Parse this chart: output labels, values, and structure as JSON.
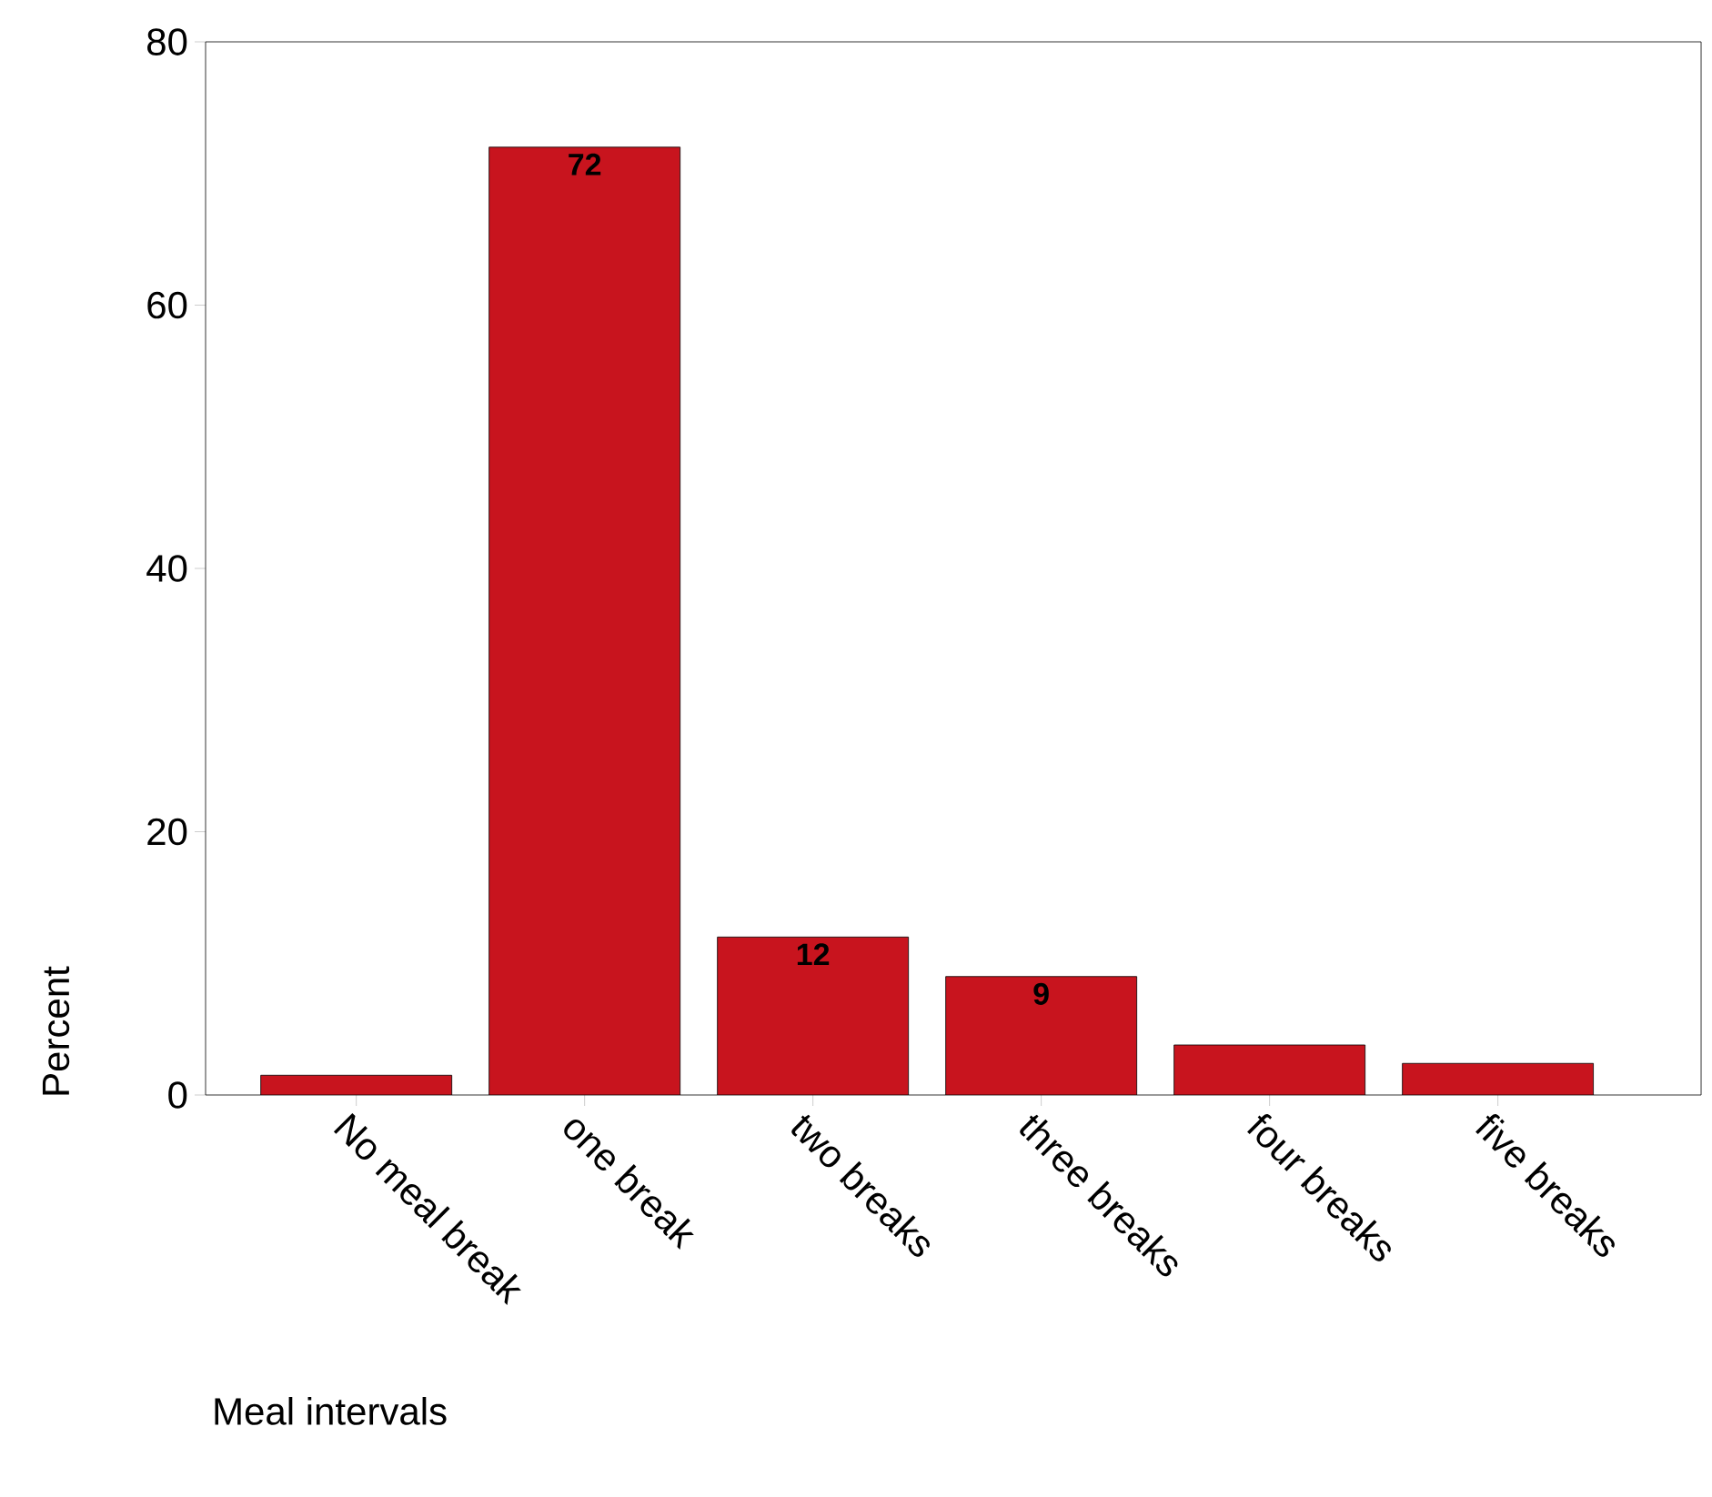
{
  "chart_data": {
    "type": "bar",
    "xlabel": "Meal intervals",
    "ylabel": "Percent",
    "categories": [
      "No meal break",
      "one break",
      "two breaks",
      "three breaks",
      "four breaks",
      "five breaks"
    ],
    "values": [
      1.5,
      72,
      12,
      9,
      3.8,
      2.4
    ],
    "value_labels": [
      null,
      "72",
      "12",
      "9",
      null,
      null
    ],
    "color": "#c8141e",
    "ylim": [
      0,
      80
    ],
    "yticks": [
      0,
      20,
      40,
      60,
      80
    ],
    "grid": false
  }
}
